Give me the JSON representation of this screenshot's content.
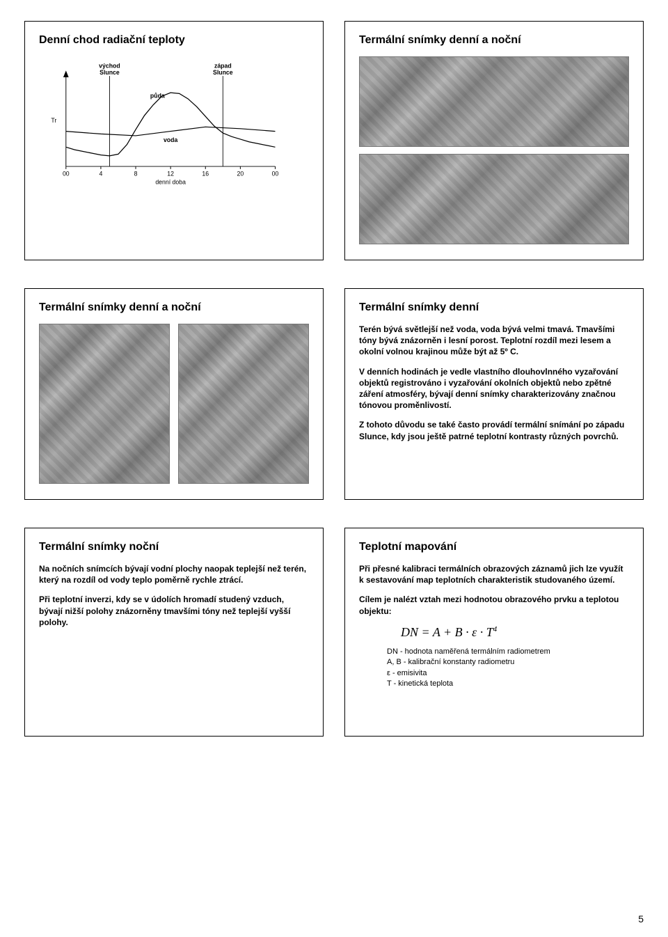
{
  "page_number": "5",
  "panel1": {
    "title": "Denní chod radiační teploty",
    "chart": {
      "type": "line",
      "x_ticks": [
        "00",
        "4",
        "8",
        "12",
        "16",
        "20",
        "00"
      ],
      "x_label": "denní doba",
      "y_label": "Tr",
      "labels": {
        "vychod": "východ\nSlunce",
        "zapad": "západ\nSlunce",
        "puda": "půda",
        "voda": "voda"
      },
      "puda_series_x": [
        0,
        1,
        2,
        3,
        4,
        5,
        6,
        7,
        8,
        9,
        10,
        11,
        12,
        13,
        14,
        15,
        16,
        17,
        18,
        19,
        20,
        21,
        22,
        23,
        24
      ],
      "puda_series_y": [
        22,
        19,
        17,
        15,
        13,
        12,
        14,
        25,
        42,
        58,
        70,
        80,
        84,
        83,
        77,
        68,
        57,
        46,
        38,
        34,
        31,
        28,
        26,
        24,
        22
      ],
      "voda_series_x": [
        0,
        4,
        8,
        12,
        16,
        20,
        24
      ],
      "voda_series_y": [
        40,
        37,
        35,
        40,
        45,
        43,
        40
      ],
      "line_color": "#000000",
      "bg": "#ffffff",
      "vychod_x": 5,
      "zapad_x": 18,
      "fontsize": 9
    }
  },
  "panel2": {
    "title": "Termální snímky denní a noční"
  },
  "panel3": {
    "title": "Termální snímky denní a noční"
  },
  "panel4": {
    "title": "Termální snímky denní",
    "p1": "Terén bývá světlejší než voda, voda bývá velmi tmavá. Tmavšími tóny bývá znázorněn i lesní porost. Teplotní rozdíl mezi lesem a okolní volnou krajinou může být až 5º C.",
    "p2": "V denních hodinách je vedle vlastního dlouhovlnného vyzařování objektů registrováno i vyzařování okolních objektů nebo zpětné záření atmosféry, bývají denní snímky charakterizovány značnou tónovou proměnlivostí.",
    "p3": "Z tohoto důvodu se také často provádí termální snímání po západu Slunce, kdy jsou ještě patrné teplotní kontrasty různých povrchů."
  },
  "panel5": {
    "title": "Termální snímky noční",
    "p1": "Na nočních snímcích bývají  vodní plochy naopak teplejší než terén, který na rozdíl od vody teplo poměrně rychle ztrácí.",
    "p2": "Při teplotní inverzi, kdy se v údolích hromadí studený vzduch, bývají nižší polohy znázorněny tmavšími tóny než teplejší vyšší polohy."
  },
  "panel6": {
    "title": "Teplotní mapování",
    "p1": "Při přesné kalibraci termálních obrazových záznamů jich lze využít k sestavování map teplotních charakteristik studovaného území.",
    "p2": "Cílem je nalézt vztah mezi hodnotou obrazového prvku a teplotou objektu:",
    "formula_html": "DN = A + B · ε · T",
    "formula_sup": "4",
    "legend_l1": "DN - hodnota naměřená termálním radiometrem",
    "legend_l2": "A, B - kalibrační konstanty radiometru",
    "legend_l3": "ε - emisivita",
    "legend_l4": "T - kinetická teplota"
  }
}
